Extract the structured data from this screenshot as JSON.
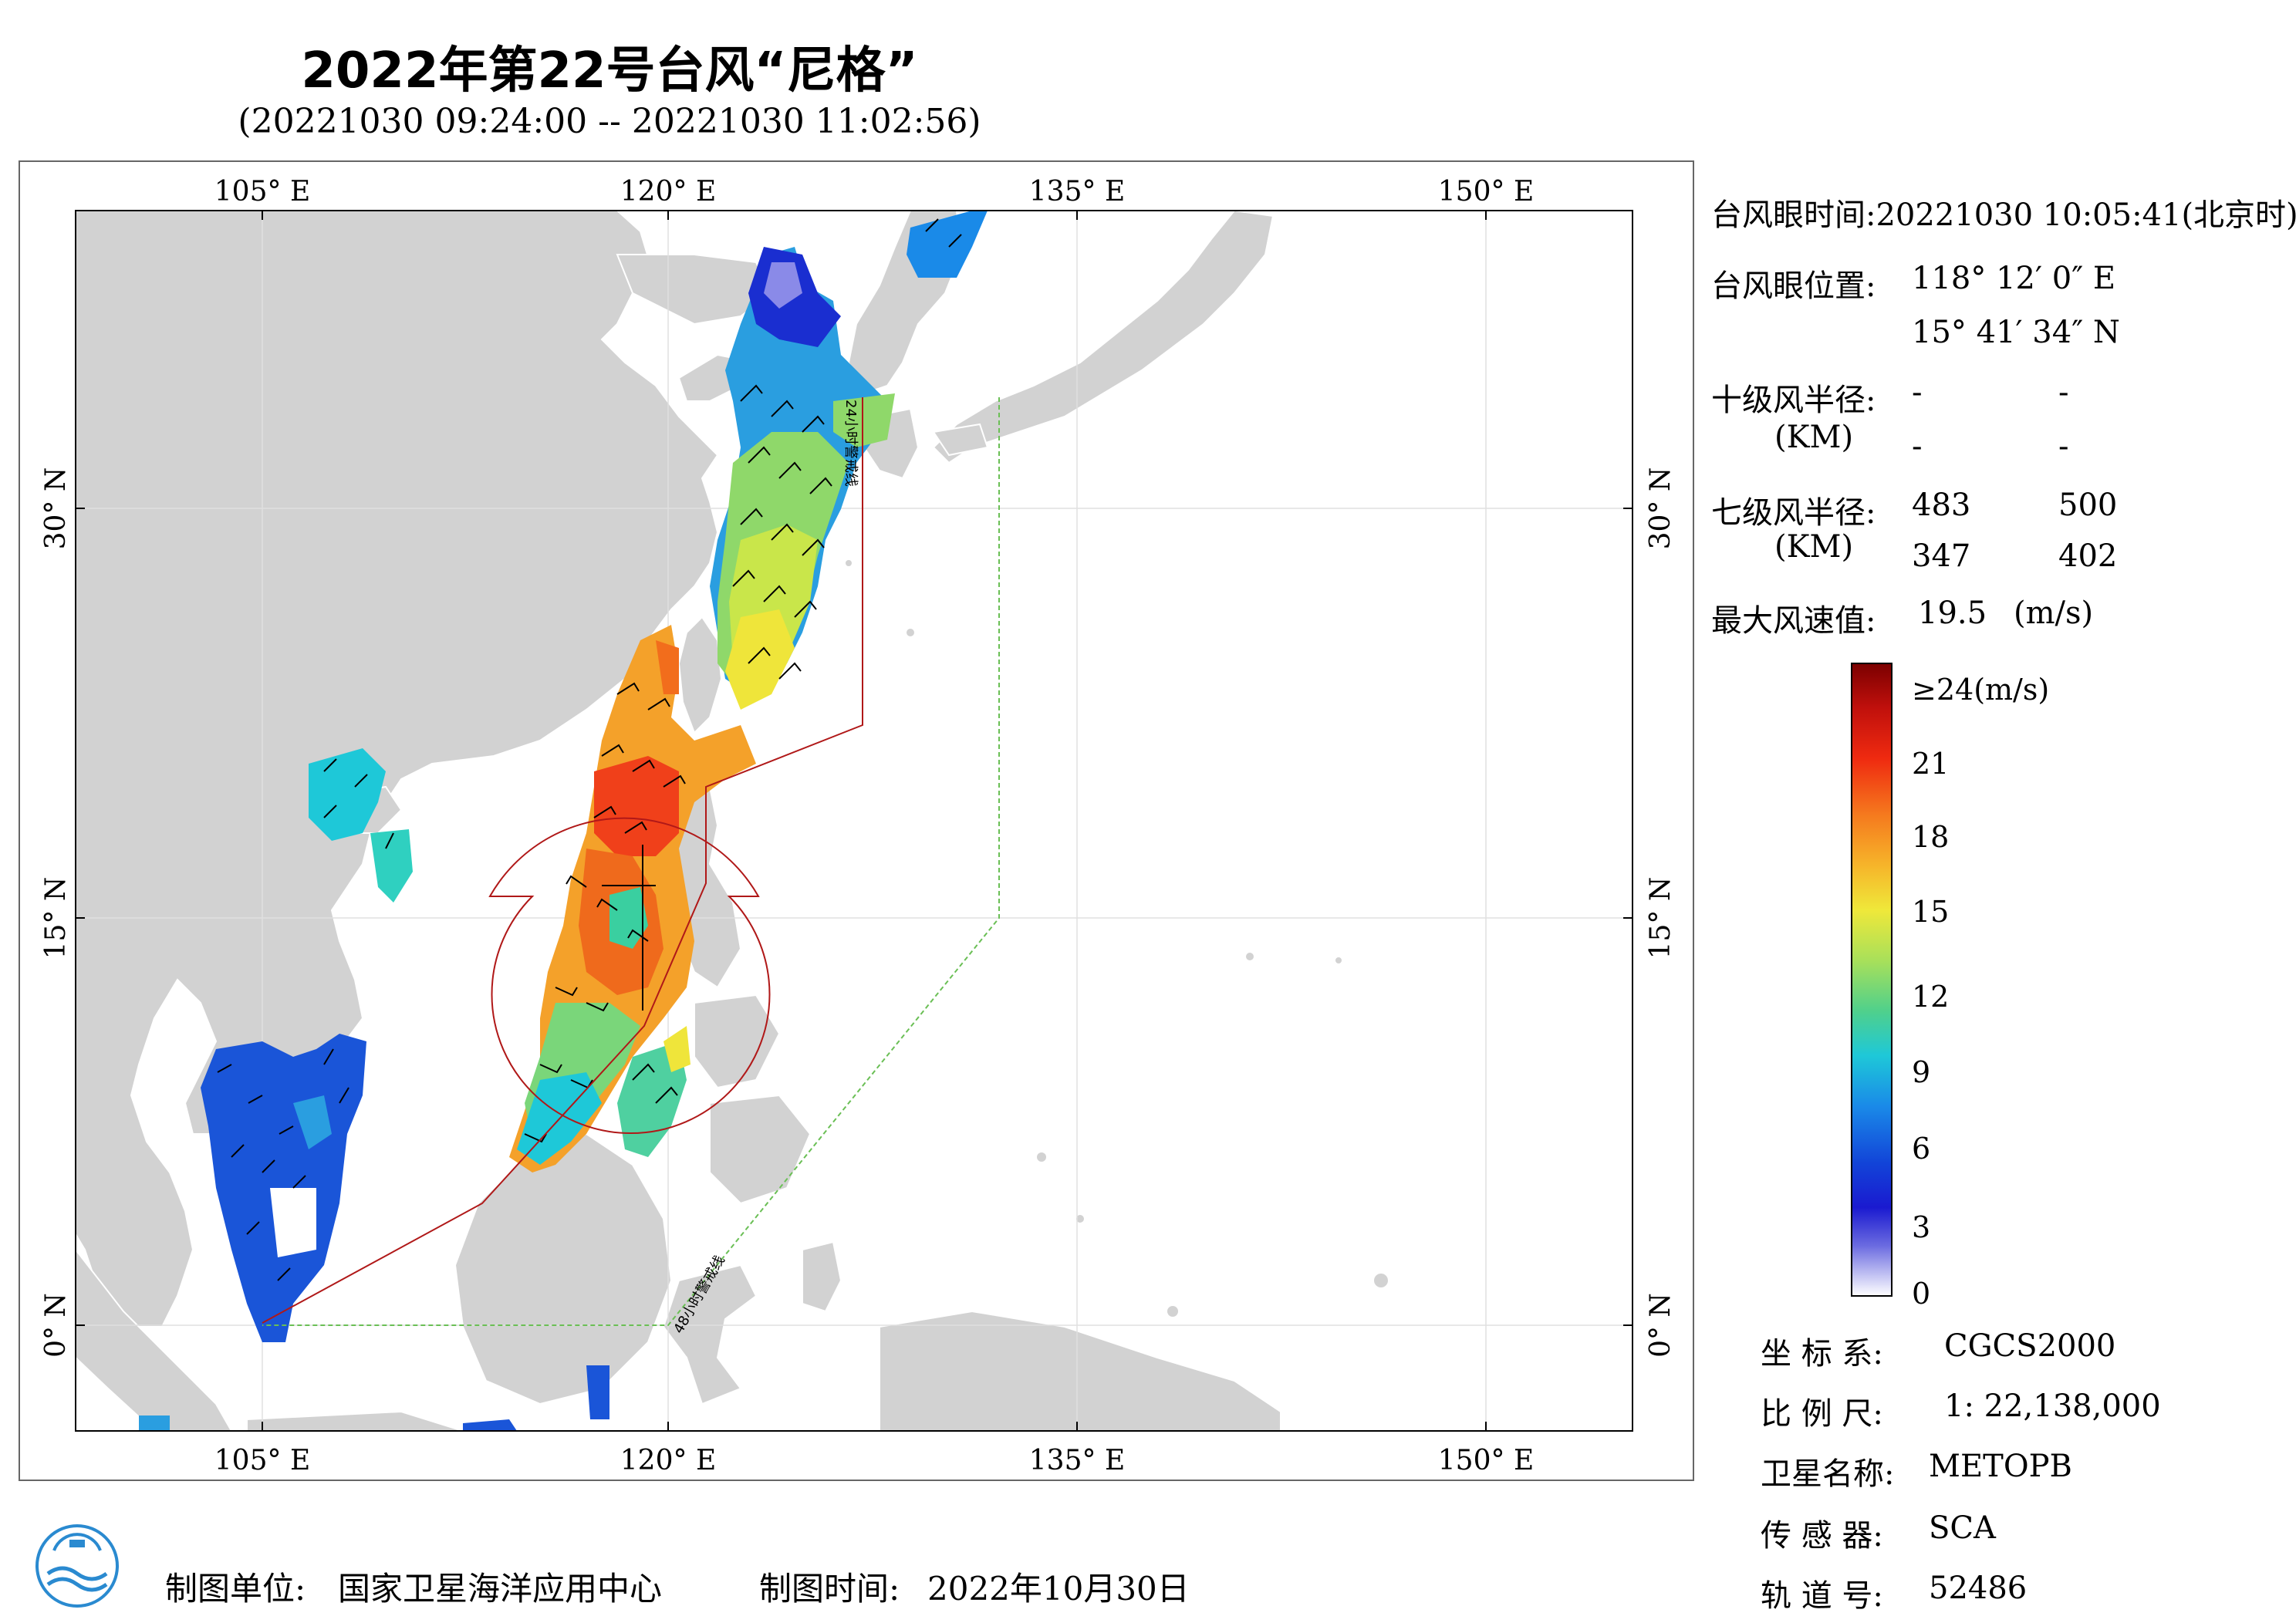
{
  "header": {
    "title": "2022年第22号台风“尼格”",
    "time_range": "(20221030 09:24:00 -- 20221030 11:02:56)"
  },
  "map": {
    "lon_ticks": [
      "105° E",
      "120° E",
      "135° E",
      "150° E"
    ],
    "lat_ticks": [
      "30° N",
      "15° N",
      "0° N"
    ],
    "lines": {
      "warn24": "24小时警戒线",
      "warn48": "48小时警戒线"
    },
    "colors": {
      "land": "#d2d2d2",
      "sea": "#ffffff",
      "warn24_line": "#b01818",
      "warn48_line": "#6abf55",
      "wind_circle": "#b01818"
    }
  },
  "info": {
    "eye_time_label": "台风眼时间:",
    "eye_time_value": "20221030 10:05:41(北京时)",
    "eye_pos_label": "台风眼位置:",
    "eye_lon": "118° 12′ 0″ E",
    "eye_lat": "15° 41′ 34″ N",
    "r10_label": "十级风半径:",
    "r10_unit": "(KM)",
    "r10_values": [
      "-",
      "-",
      "-",
      "-"
    ],
    "r7_label": "七级风半径:",
    "r7_unit": "(KM)",
    "r7_values": [
      "483",
      "500",
      "347",
      "402"
    ],
    "max_wind_label": "最大风速值:",
    "max_wind_value": "19.5",
    "max_wind_unit": "(m/s)"
  },
  "colorbar": {
    "labels": [
      "≥24(m/s)",
      "21",
      "18",
      "15",
      "12",
      "9",
      "6",
      "3",
      "0"
    ],
    "colors": [
      "#7b0000",
      "#c0100c",
      "#f03c14",
      "#f57a1e",
      "#f6b52a",
      "#f1ec3a",
      "#a8e05a",
      "#4fd08c",
      "#1ec8d8",
      "#1a8ae8",
      "#1244d8",
      "#1a1ad0",
      "#6a6ae0",
      "#b8b8f0",
      "#ffffff"
    ]
  },
  "meta": {
    "crs_label": "坐 标 系:",
    "crs_value": "CGCS2000",
    "scale_label": "比 例 尺:",
    "scale_value": "1: 22,138,000",
    "sat_label": "卫星名称:",
    "sat_value": "METOPB",
    "sensor_label": "传 感 器:",
    "sensor_value": "SCA",
    "orbit_label": "轨 道 号:",
    "orbit_value": "52486"
  },
  "footer": {
    "unit_label": "制图单位:",
    "unit_value": "国家卫星海洋应用中心",
    "date_label": "制图时间:",
    "date_value": "2022年10月30日"
  }
}
